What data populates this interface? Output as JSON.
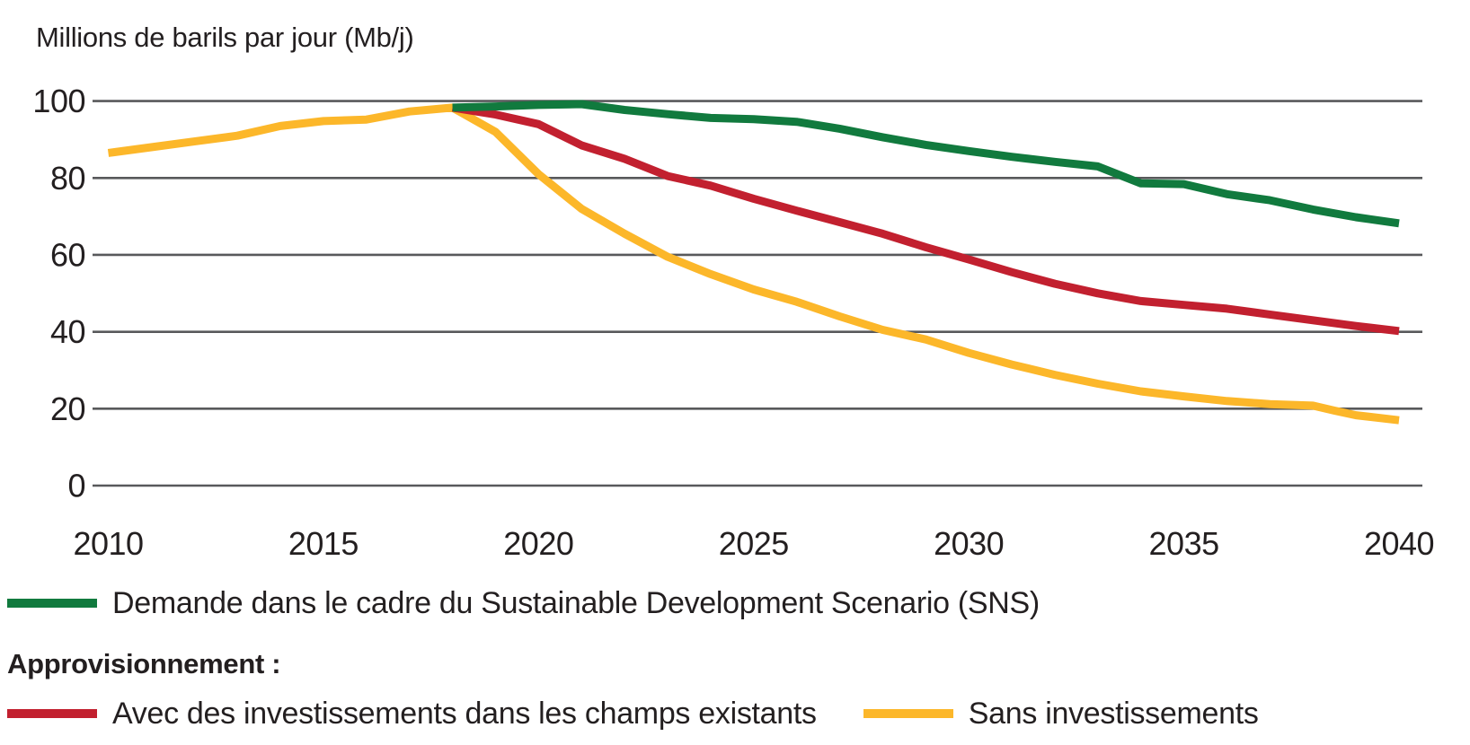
{
  "title": "Millions de barils par jour (Mb/j)",
  "colors": {
    "text": "#231f20",
    "grid": "#58595b",
    "background": "#ffffff",
    "demand_green": "#117a3e",
    "with_invest_red": "#c2202f",
    "without_invest_yellow": "#fcb72a"
  },
  "legend": {
    "demand": {
      "label": "Demande dans le cadre du Sustainable Development Scenario (SNS)",
      "color": "#117a3e"
    },
    "supply_heading": "Approvisionnement :",
    "with_invest": {
      "label": "Avec des investissements dans les champs existants",
      "color": "#c2202f"
    },
    "without_invest": {
      "label": "Sans investissements",
      "color": "#fcb72a"
    }
  },
  "chart_data": {
    "type": "line",
    "title": "Millions de barils par jour (Mb/j)",
    "xlabel": "",
    "ylabel": "Millions de barils par jour (Mb/j)",
    "xlim": [
      2010,
      2040
    ],
    "ylim": [
      0,
      100
    ],
    "xticks": [
      2010,
      2015,
      2020,
      2025,
      2030,
      2035,
      2040
    ],
    "yticks": [
      0,
      20,
      40,
      60,
      80,
      100
    ],
    "grid": "horizontal-only",
    "legend_position": "below",
    "series": [
      {
        "id": "sans-investissements",
        "name": "Sans investissements",
        "color": "#fcb72a",
        "points": [
          [
            2010,
            86.5
          ],
          [
            2011,
            88
          ],
          [
            2012,
            89.5
          ],
          [
            2013,
            91
          ],
          [
            2014,
            93.5
          ],
          [
            2015,
            94.8
          ],
          [
            2016,
            95.2
          ],
          [
            2017,
            97.3
          ],
          [
            2018,
            98.3
          ],
          [
            2019,
            92
          ],
          [
            2020,
            81
          ],
          [
            2021,
            72
          ],
          [
            2022,
            65.5
          ],
          [
            2023,
            59.5
          ],
          [
            2024,
            55
          ],
          [
            2025,
            51
          ],
          [
            2026,
            47.8
          ],
          [
            2027,
            44
          ],
          [
            2028,
            40.5
          ],
          [
            2029,
            38
          ],
          [
            2030,
            34.5
          ],
          [
            2031,
            31.5
          ],
          [
            2032,
            28.8
          ],
          [
            2033,
            26.5
          ],
          [
            2034,
            24.5
          ],
          [
            2035,
            23.2
          ],
          [
            2036,
            22
          ],
          [
            2037,
            21.2
          ],
          [
            2038,
            20.8
          ],
          [
            2038.5,
            19.5
          ],
          [
            2039,
            18.3
          ],
          [
            2040,
            17
          ]
        ]
      },
      {
        "id": "avec-investissements",
        "name": "Avec des investissements dans les champs existants",
        "color": "#c2202f",
        "points": [
          [
            2018,
            98.3
          ],
          [
            2019,
            96.5
          ],
          [
            2020,
            94
          ],
          [
            2021,
            88.5
          ],
          [
            2022,
            85
          ],
          [
            2023,
            80.5
          ],
          [
            2024,
            78
          ],
          [
            2025,
            74.6
          ],
          [
            2026,
            71.5
          ],
          [
            2027,
            68.5
          ],
          [
            2028,
            65.5
          ],
          [
            2029,
            62
          ],
          [
            2030,
            58.8
          ],
          [
            2031,
            55.5
          ],
          [
            2032,
            52.5
          ],
          [
            2033,
            50
          ],
          [
            2034,
            48
          ],
          [
            2035,
            47
          ],
          [
            2036,
            46
          ],
          [
            2037,
            44.5
          ],
          [
            2038,
            43
          ],
          [
            2039,
            41.5
          ],
          [
            2040,
            40.2
          ]
        ]
      },
      {
        "id": "demande-sds",
        "name": "Demande dans le cadre du Sustainable Development Scenario (SNS)",
        "color": "#117a3e",
        "points": [
          [
            2018,
            98.3
          ],
          [
            2019,
            98.6
          ],
          [
            2020,
            99
          ],
          [
            2021,
            99.2
          ],
          [
            2022,
            97.7
          ],
          [
            2023,
            96.6
          ],
          [
            2024,
            95.6
          ],
          [
            2025,
            95.3
          ],
          [
            2026,
            94.6
          ],
          [
            2027,
            92.8
          ],
          [
            2028,
            90.6
          ],
          [
            2029,
            88.6
          ],
          [
            2030,
            87
          ],
          [
            2031,
            85.5
          ],
          [
            2032,
            84.2
          ],
          [
            2033,
            83
          ],
          [
            2034,
            78.6
          ],
          [
            2035,
            78.4
          ],
          [
            2036,
            75.8
          ],
          [
            2037,
            74.2
          ],
          [
            2038,
            71.8
          ],
          [
            2039,
            69.8
          ],
          [
            2040,
            68.2
          ]
        ]
      }
    ]
  }
}
